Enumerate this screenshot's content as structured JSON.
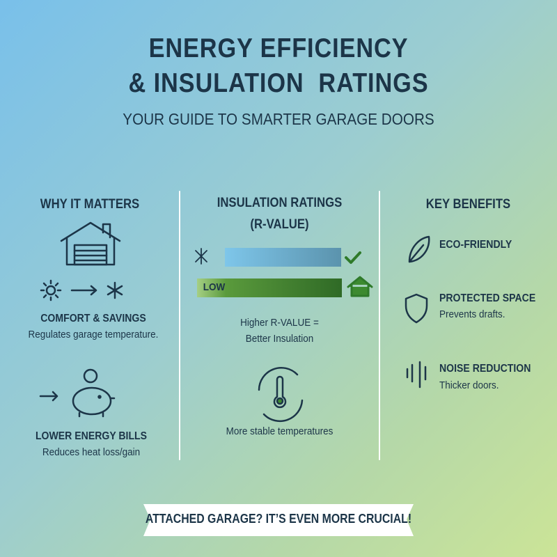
{
  "header": {
    "title_lines": [
      "ENERGY EFFICIENCY",
      "& INSULATION  RATINGS"
    ],
    "subtitle": "YOUR GUIDE TO SMARTER GARAGE DOORS"
  },
  "columns": [
    {
      "heading": "WHY IT MATTERS",
      "items": [
        {
          "title": "COMFORT & SAVINGS",
          "text": "Regulates garage temperature."
        },
        {
          "title": "LOWER ENERGY BILLS",
          "text": "Reduces heat loss/gain"
        }
      ]
    },
    {
      "heading": "INSULATION RATINGS",
      "subheading": "(R-VALUE)",
      "bar_label": "LOW",
      "note_lines": [
        "Higher R-VALUE =",
        "Better Insulation"
      ],
      "caption": "More stable temperatures"
    },
    {
      "heading": "KEY BENEFITS",
      "items": [
        {
          "title": "ECO-FRIENDLY"
        },
        {
          "title": "PROTECTED SPACE",
          "text": "Prevents drafts."
        },
        {
          "title": "NOISE REDUCTION",
          "text": "Thicker doors."
        }
      ]
    }
  ],
  "banner": "ATTACHED GARAGE? IT’S EVEN MORE CRUCIAL!"
}
